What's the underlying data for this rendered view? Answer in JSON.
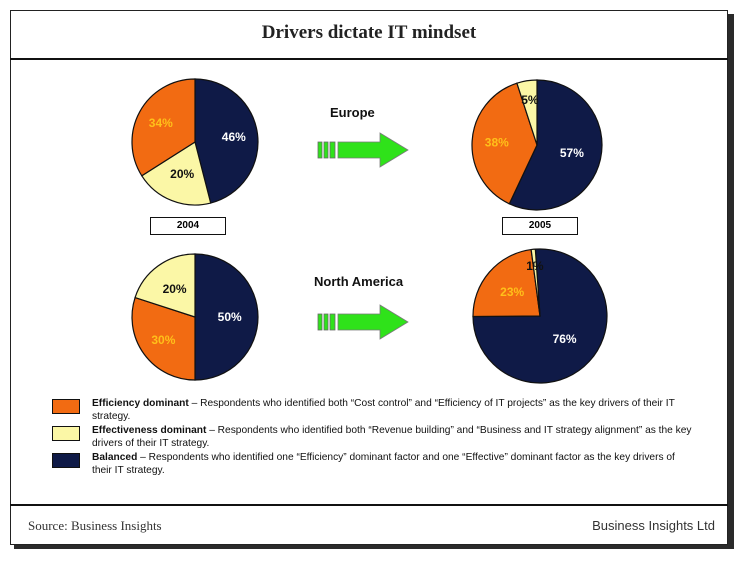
{
  "title": "Drivers dictate IT mindset",
  "colors": {
    "efficiency": "#f26b12",
    "effectiveness": "#fbf7a6",
    "balanced": "#0f1a47",
    "arrow": "#2fe21a"
  },
  "chart_data": [
    {
      "type": "pie",
      "region": "Europe",
      "year": "2004",
      "slices": [
        {
          "category": "Balanced",
          "value": 46,
          "label": "46%"
        },
        {
          "category": "Effectiveness dominant",
          "value": 20,
          "label": "20%"
        },
        {
          "category": "Efficiency dominant",
          "value": 34,
          "label": "34%"
        }
      ]
    },
    {
      "type": "pie",
      "region": "Europe",
      "year": "2005",
      "slices": [
        {
          "category": "Balanced",
          "value": 57,
          "label": "57%"
        },
        {
          "category": "Efficiency dominant",
          "value": 38,
          "label": "38%"
        },
        {
          "category": "Effectiveness dominant",
          "value": 5,
          "label": "5%"
        }
      ]
    },
    {
      "type": "pie",
      "region": "North America",
      "year": "2004",
      "slices": [
        {
          "category": "Balanced",
          "value": 50,
          "label": "50%"
        },
        {
          "category": "Efficiency dominant",
          "value": 30,
          "label": "30%"
        },
        {
          "category": "Effectiveness dominant",
          "value": 20,
          "label": "20%"
        }
      ]
    },
    {
      "type": "pie",
      "region": "North America",
      "year": "2005",
      "slices": [
        {
          "category": "Balanced",
          "value": 76,
          "label": "76%"
        },
        {
          "category": "Efficiency dominant",
          "value": 23,
          "label": "23%"
        },
        {
          "category": "Effectiveness dominant",
          "value": 1,
          "label": "1%"
        }
      ]
    }
  ],
  "regions": {
    "europe": "Europe",
    "north_america": "North America"
  },
  "years": {
    "left": "2004",
    "right": "2005"
  },
  "legend": [
    {
      "key": "efficiency",
      "term": "Efficiency dominant",
      "desc": " – Respondents who identified both “Cost control” and   “Efficiency of IT projects” as the key drivers of their IT strategy."
    },
    {
      "key": "effectiveness",
      "term": "Effectiveness dominant",
      "desc": " – Respondents who identified both “Revenue building” and “Business and IT strategy alignment” as the key drivers of their IT strategy."
    },
    {
      "key": "balanced",
      "term": "Balanced",
      "desc": " – Respondents who identified one “Efficiency” dominant factor and one “Effective” dominant factor as the key drivers of their IT strategy."
    }
  ],
  "footer": {
    "source": "Source: Business Insights",
    "brand": "Business Insights Ltd"
  }
}
